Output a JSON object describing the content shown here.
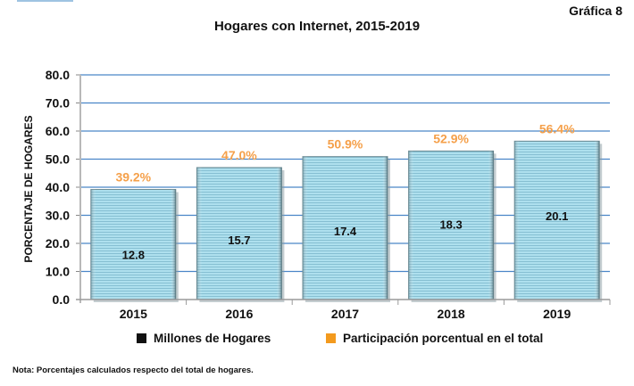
{
  "header": {
    "label": "Gráfica 8"
  },
  "note": "Nota: Porcentajes calculados respecto del total de hogares.",
  "colors": {
    "bar_fill": "#a9dbe9",
    "bar_stripe": "#8cc3d6",
    "bar_edge": "#6d8c95",
    "grid": "#4a86c8",
    "axis": "#b8b8b8",
    "pct_label": "#f5a04a",
    "legend_millions": "#111111",
    "legend_pct": "#f39a1e"
  },
  "chart_data": {
    "type": "bar",
    "title": "Hogares con Internet, 2015-2019",
    "xlabel": "",
    "ylabel": "PORCENTAJE DE HOGARES",
    "ylim": [
      0,
      80
    ],
    "yticks": [
      "0.0",
      "10.0",
      "20.0",
      "30.0",
      "40.0",
      "50.0",
      "60.0",
      "70.0",
      "80.0"
    ],
    "grid": true,
    "categories": [
      "2015",
      "2016",
      "2017",
      "2018",
      "2019"
    ],
    "series": [
      {
        "name": "Participación porcentual en el total",
        "values": [
          39.2,
          47.0,
          50.9,
          52.9,
          56.4
        ],
        "labels": [
          "39.2%",
          "47.0%",
          "50.9%",
          "52.9%",
          "56.4%"
        ]
      },
      {
        "name": "Millones de Hogares",
        "values": [
          12.8,
          15.7,
          17.4,
          18.3,
          20.1
        ],
        "labels": [
          "12.8",
          "15.7",
          "17.4",
          "18.3",
          "20.1"
        ]
      }
    ],
    "legend": [
      "Millones de Hogares",
      "Participación porcentual en el total"
    ],
    "legend_position": "bottom"
  }
}
